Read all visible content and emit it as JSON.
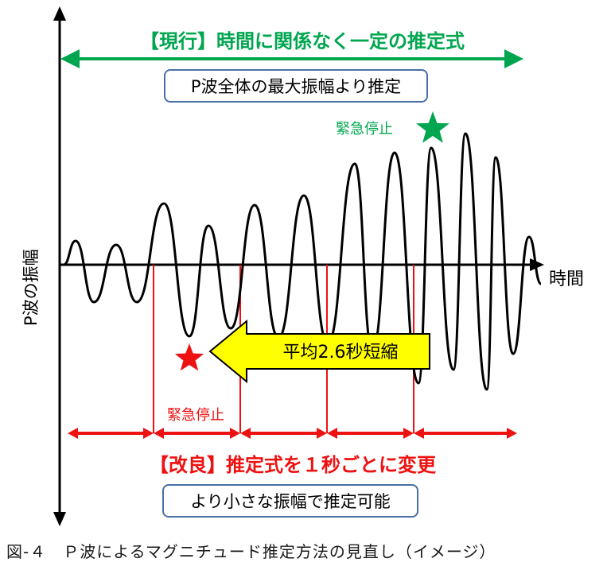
{
  "current": {
    "title": "【現行】時間に関係なく一定の推定式",
    "box": "P波全体の最大振幅より推定",
    "stop_label": "緊急停止"
  },
  "improved": {
    "title": "【改良】推定式を１秒ごとに変更",
    "box": "より小さな振幅で推定可能",
    "stop_label": "緊急停止"
  },
  "axes": {
    "x_label": "時間",
    "y_label": "P波の振幅"
  },
  "callout": "平均2.6秒短縮",
  "caption": "図-４　Ｐ波によるマグニチュード推定方法の見直し（イメージ）",
  "colors": {
    "green": "#00a64f",
    "red": "#ee1111",
    "callout_fill": "#ffff00",
    "box_border": "#4a6fa5"
  },
  "icons": {
    "current_stop": "star-icon",
    "improved_stop": "star-icon"
  }
}
